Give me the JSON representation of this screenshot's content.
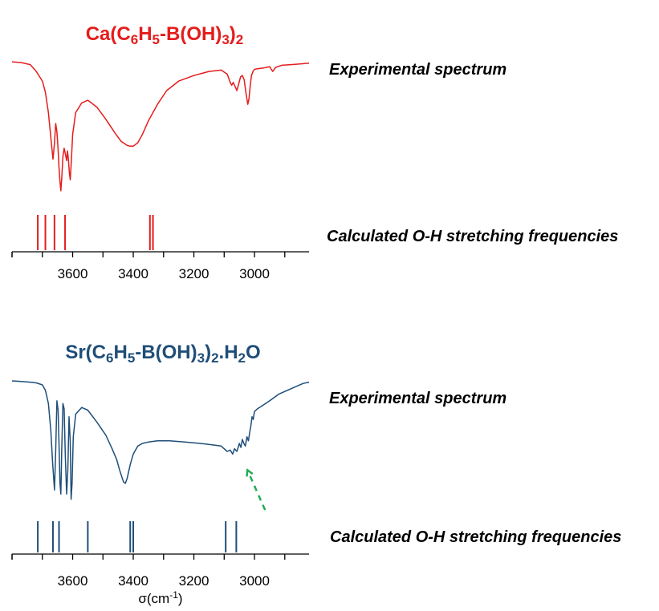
{
  "chart_data": [
    {
      "type": "line",
      "title": "Ca(C6H5-B(OH)3)2",
      "title_parts": [
        {
          "t": "Ca(C"
        },
        {
          "t": "6",
          "sub": true
        },
        {
          "t": "H"
        },
        {
          "t": "5",
          "sub": true
        },
        {
          "t": "-B(OH)"
        },
        {
          "t": "3",
          "sub": true
        },
        {
          "t": ")"
        },
        {
          "t": "2",
          "sub": true
        }
      ],
      "color": "#e51c1c",
      "x_axis": {
        "reversed": true,
        "xlim": [
          3800,
          2820
        ],
        "ticks": [
          3600,
          3400,
          3200,
          3000
        ],
        "tick_labels": [
          "3600",
          "3400",
          "3200",
          "3000"
        ]
      },
      "y_axis": {
        "ylim": [
          0,
          1
        ],
        "unit": "relative transmittance"
      },
      "experimental_label": "Experimental spectrum",
      "calculated_label": "Calculated O-H stretching frequencies",
      "experimental_spectrum": {
        "x": [
          3800,
          3770,
          3740,
          3720,
          3700,
          3690,
          3680,
          3672,
          3665,
          3660,
          3656,
          3652,
          3648,
          3645,
          3642,
          3639,
          3636,
          3632,
          3628,
          3624,
          3620,
          3617,
          3614,
          3611,
          3608,
          3604,
          3600,
          3590,
          3570,
          3550,
          3520,
          3490,
          3460,
          3440,
          3420,
          3410,
          3400,
          3385,
          3370,
          3350,
          3320,
          3290,
          3250,
          3200,
          3150,
          3110,
          3090,
          3080,
          3075,
          3070,
          3064,
          3058,
          3052,
          3046,
          3040,
          3034,
          3028,
          3022,
          3018,
          3014,
          3010,
          3005,
          3000,
          2990,
          2970,
          2950,
          2940,
          2930,
          2910,
          2880,
          2850,
          2820
        ],
        "y": [
          0.97,
          0.965,
          0.95,
          0.9,
          0.83,
          0.75,
          0.6,
          0.42,
          0.26,
          0.38,
          0.52,
          0.46,
          0.33,
          0.2,
          0.1,
          0.03,
          0.12,
          0.28,
          0.34,
          0.3,
          0.25,
          0.32,
          0.26,
          0.16,
          0.11,
          0.26,
          0.44,
          0.6,
          0.67,
          0.69,
          0.64,
          0.55,
          0.45,
          0.39,
          0.36,
          0.355,
          0.355,
          0.38,
          0.44,
          0.54,
          0.66,
          0.76,
          0.83,
          0.87,
          0.9,
          0.91,
          0.88,
          0.82,
          0.8,
          0.82,
          0.79,
          0.76,
          0.81,
          0.86,
          0.87,
          0.84,
          0.74,
          0.66,
          0.7,
          0.8,
          0.87,
          0.9,
          0.915,
          0.92,
          0.925,
          0.935,
          0.9,
          0.93,
          0.945,
          0.95,
          0.955,
          0.96
        ]
      },
      "calculated_frequencies": [
        3715,
        3690,
        3660,
        3625,
        3345,
        3335
      ]
    },
    {
      "type": "line",
      "title": "Sr(C6H5-B(OH)3)2.H2O",
      "title_parts": [
        {
          "t": "Sr(C"
        },
        {
          "t": "6",
          "sub": true
        },
        {
          "t": "H"
        },
        {
          "t": "5",
          "sub": true
        },
        {
          "t": "-B(OH)"
        },
        {
          "t": "3",
          "sub": true
        },
        {
          "t": ")"
        },
        {
          "t": "2",
          "sub": true
        },
        {
          "t": ".H"
        },
        {
          "t": "2",
          "sub": true
        },
        {
          "t": "O"
        }
      ],
      "color": "#1f4e79",
      "x_axis": {
        "reversed": true,
        "xlim": [
          3800,
          2820
        ],
        "ticks": [
          3600,
          3400,
          3200,
          3000
        ],
        "tick_labels": [
          "3600",
          "3400",
          "3200",
          "3000"
        ],
        "label": "σ(cm-1)",
        "label_main": "σ(cm",
        "label_sup": "-1",
        "label_end": ")"
      },
      "y_axis": {
        "ylim": [
          0,
          1
        ],
        "unit": "relative transmittance"
      },
      "experimental_label": "Experimental spectrum",
      "calculated_label": "Calculated O-H stretching frequencies",
      "experimental_spectrum": {
        "x": [
          3800,
          3770,
          3740,
          3720,
          3700,
          3690,
          3680,
          3672,
          3666,
          3660,
          3656,
          3652,
          3648,
          3645,
          3642,
          3639,
          3636,
          3632,
          3628,
          3624,
          3620,
          3616,
          3612,
          3608,
          3605,
          3602,
          3598,
          3590,
          3570,
          3550,
          3520,
          3490,
          3470,
          3455,
          3445,
          3438,
          3432,
          3426,
          3420,
          3410,
          3400,
          3385,
          3370,
          3350,
          3320,
          3280,
          3230,
          3180,
          3140,
          3110,
          3090,
          3080,
          3072,
          3066,
          3058,
          3050,
          3045,
          3040,
          3035,
          3030,
          3025,
          3020,
          3016,
          3012,
          3008,
          3004,
          3000,
          2990,
          2970,
          2950,
          2920,
          2890,
          2860,
          2840,
          2820
        ],
        "y": [
          0.97,
          0.965,
          0.96,
          0.955,
          0.94,
          0.9,
          0.8,
          0.6,
          0.35,
          0.15,
          0.45,
          0.82,
          0.75,
          0.5,
          0.2,
          0.12,
          0.45,
          0.8,
          0.76,
          0.4,
          0.12,
          0.3,
          0.7,
          0.52,
          0.08,
          0.2,
          0.55,
          0.72,
          0.77,
          0.75,
          0.66,
          0.56,
          0.46,
          0.38,
          0.3,
          0.25,
          0.21,
          0.2,
          0.24,
          0.34,
          0.42,
          0.48,
          0.5,
          0.51,
          0.52,
          0.52,
          0.51,
          0.5,
          0.49,
          0.48,
          0.44,
          0.45,
          0.42,
          0.46,
          0.44,
          0.5,
          0.47,
          0.53,
          0.5,
          0.48,
          0.55,
          0.52,
          0.58,
          0.63,
          0.7,
          0.68,
          0.74,
          0.76,
          0.79,
          0.82,
          0.87,
          0.9,
          0.93,
          0.95,
          0.96
        ]
      },
      "calculated_frequencies": [
        3715,
        3665,
        3645,
        3550,
        3410,
        3400,
        3095,
        3060
      ],
      "annotation": {
        "type": "dashed-arrow",
        "color": "#22aa55",
        "from_x": 2965,
        "to_x": 3020
      }
    }
  ]
}
